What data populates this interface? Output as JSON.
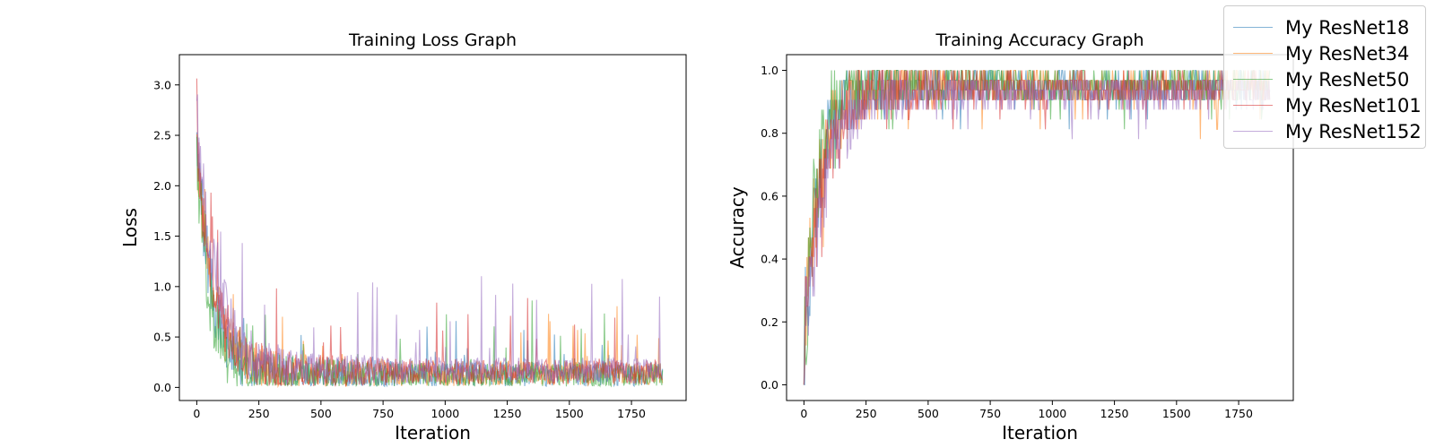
{
  "chart_data": [
    {
      "type": "line",
      "title": "Training Loss Graph",
      "xlabel": "Iteration",
      "ylabel": "Loss",
      "xlim": [
        -70,
        1970
      ],
      "ylim": [
        -0.13,
        3.3
      ],
      "x_ticks": [
        0,
        250,
        500,
        750,
        1000,
        1250,
        1500,
        1750
      ],
      "y_ticks": [
        0.0,
        0.5,
        1.0,
        1.5,
        2.0,
        2.5,
        3.0
      ],
      "y_tick_labels": [
        "0.0",
        "0.5",
        "1.0",
        "1.5",
        "2.0",
        "2.5",
        "3.0"
      ],
      "grid": false,
      "x_range": [
        0,
        1875
      ],
      "series": [
        {
          "name": "My ResNet18",
          "color": "#1f77b4",
          "start": 2.4,
          "plateau": 0.12,
          "decay": 60,
          "spike": 0.55
        },
        {
          "name": "My ResNet34",
          "color": "#ff7f0e",
          "start": 2.35,
          "plateau": 0.13,
          "decay": 65,
          "spike": 0.6
        },
        {
          "name": "My ResNet50",
          "color": "#2ca02c",
          "start": 2.3,
          "plateau": 0.1,
          "decay": 50,
          "spike": 0.65
        },
        {
          "name": "My ResNet101",
          "color": "#d62728",
          "start": 2.45,
          "plateau": 0.14,
          "decay": 70,
          "spike": 0.7
        },
        {
          "name": "My ResNet152",
          "color": "#9467bd",
          "start": 2.6,
          "plateau": 0.16,
          "decay": 80,
          "spike": 0.85
        }
      ]
    },
    {
      "type": "line",
      "title": "Training Accuracy Graph",
      "xlabel": "Iteration",
      "ylabel": "Accuracy",
      "xlim": [
        -70,
        1970
      ],
      "ylim": [
        -0.05,
        1.05
      ],
      "x_ticks": [
        0,
        250,
        500,
        750,
        1000,
        1250,
        1500,
        1750
      ],
      "y_ticks": [
        0.0,
        0.2,
        0.4,
        0.6,
        0.8,
        1.0
      ],
      "y_tick_labels": [
        "0.0",
        "0.2",
        "0.4",
        "0.6",
        "0.8",
        "1.0"
      ],
      "grid": false,
      "x_range": [
        0,
        1875
      ],
      "series": [
        {
          "name": "My ResNet18",
          "color": "#1f77b4",
          "start": 0.1,
          "plateau": 0.95,
          "decay": 60
        },
        {
          "name": "My ResNet34",
          "color": "#ff7f0e",
          "start": 0.12,
          "plateau": 0.95,
          "decay": 65
        },
        {
          "name": "My ResNet50",
          "color": "#2ca02c",
          "start": 0.08,
          "plateau": 0.96,
          "decay": 50
        },
        {
          "name": "My ResNet101",
          "color": "#d62728",
          "start": 0.1,
          "plateau": 0.94,
          "decay": 70
        },
        {
          "name": "My ResNet152",
          "color": "#9467bd",
          "start": 0.09,
          "plateau": 0.93,
          "decay": 80
        }
      ]
    }
  ],
  "legend": {
    "placement": "top-right",
    "items": [
      "My ResNet18",
      "My ResNet34",
      "My ResNet50",
      "My ResNet101",
      "My ResNet152"
    ]
  }
}
